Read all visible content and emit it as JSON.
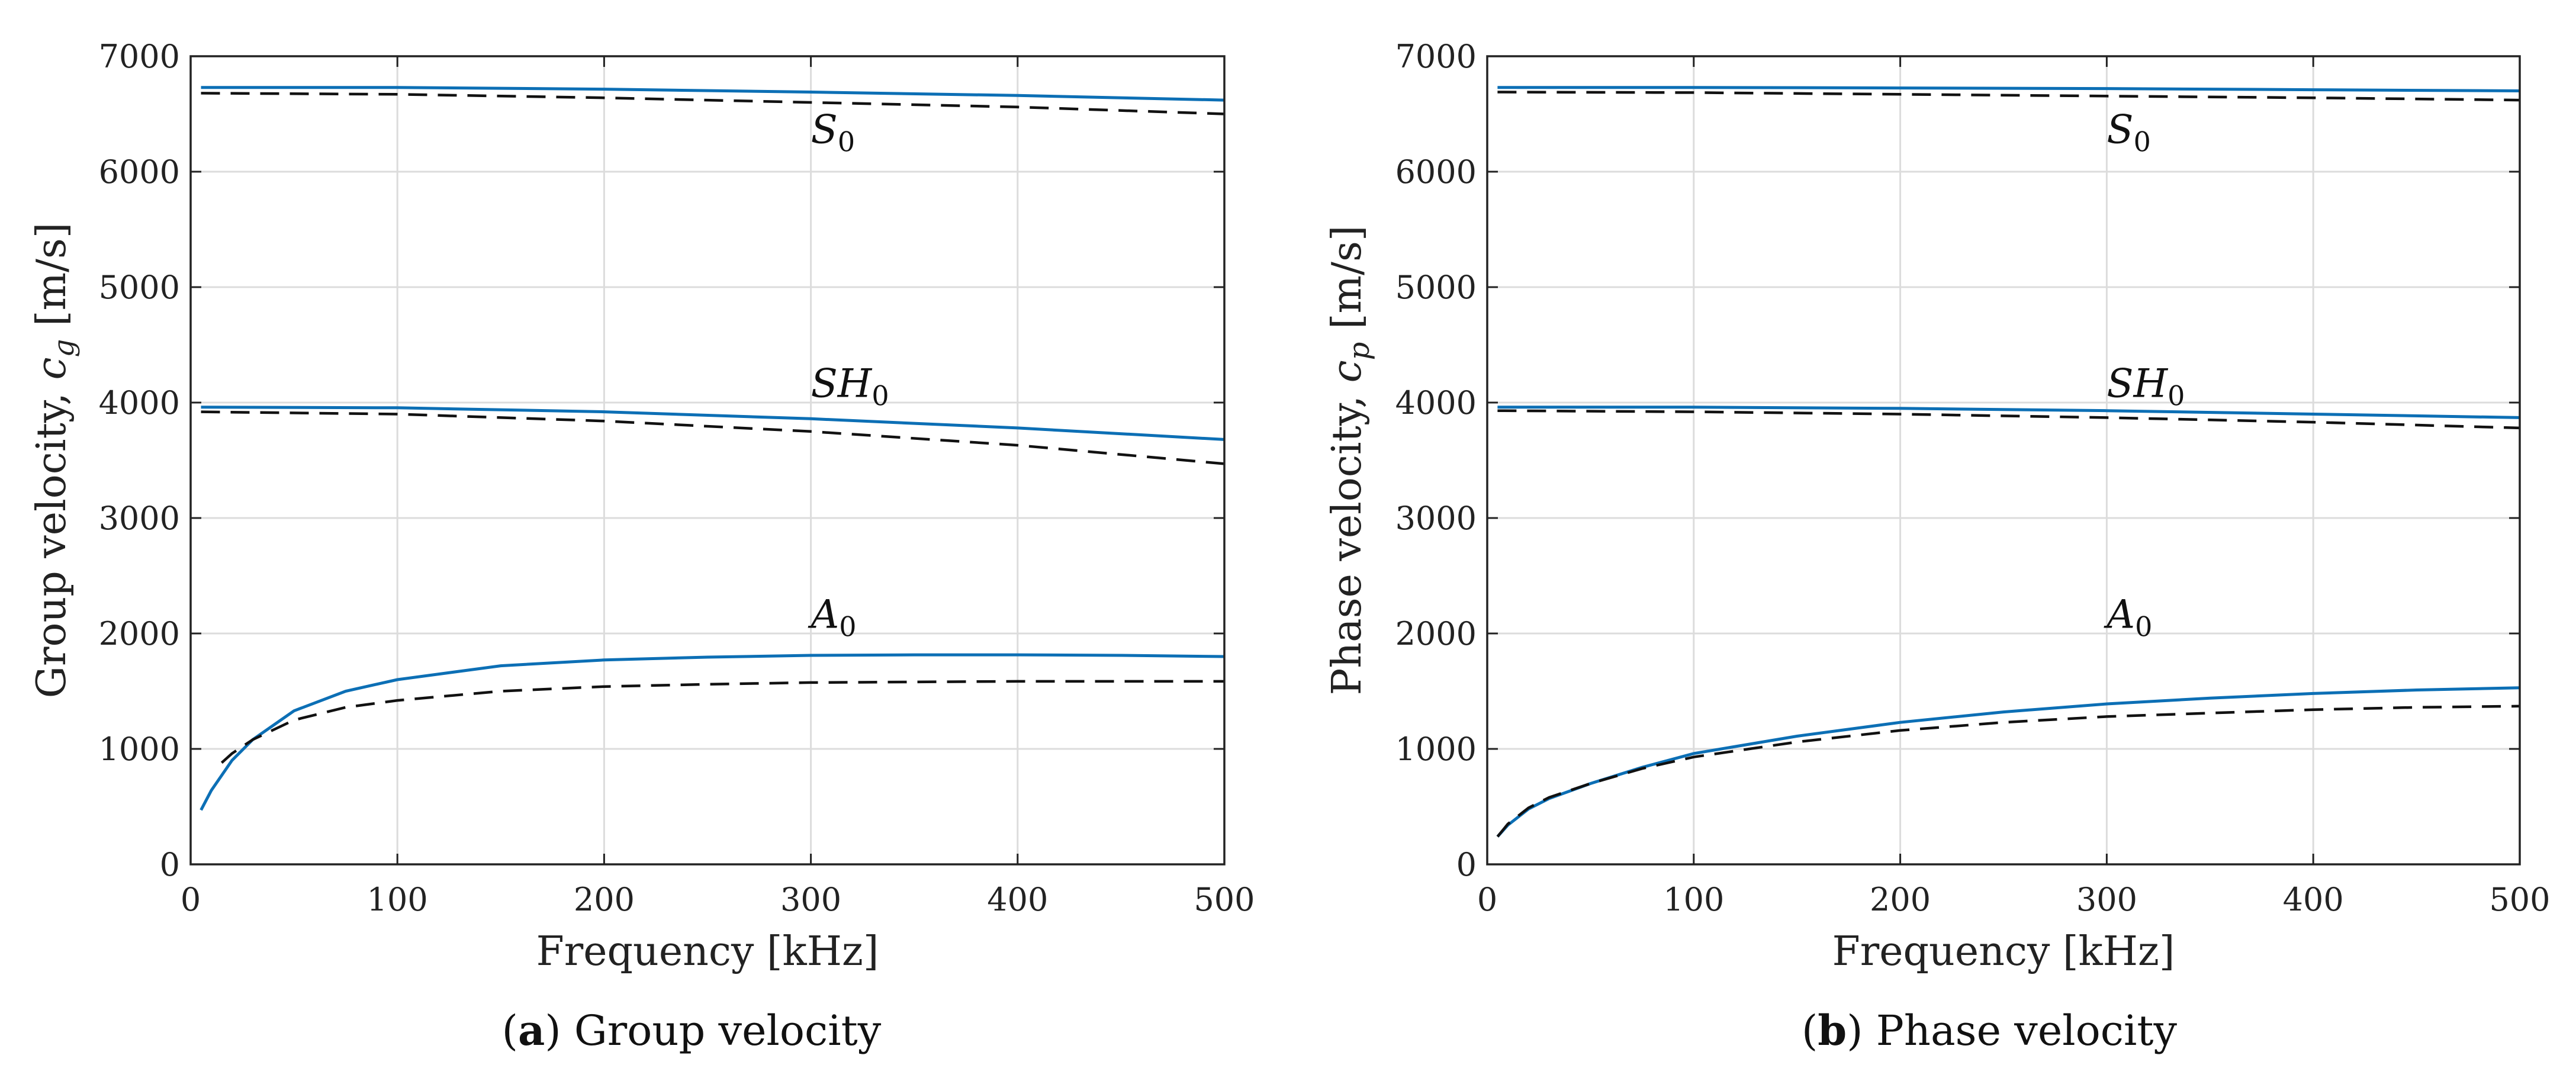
{
  "chart_data": [
    {
      "type": "line",
      "panel": "a",
      "caption_letter": "a",
      "caption_text": "Group velocity",
      "ylabel_text": "Group velocity, ",
      "ylabel_symbol": "c",
      "ylabel_subscript": "g",
      "ylabel_unit": " [m/s]",
      "xlabel": "Frequency [kHz]",
      "xlim": [
        0,
        500
      ],
      "ylim": [
        0,
        7000
      ],
      "xticks": [
        0,
        100,
        200,
        300,
        400,
        500
      ],
      "yticks": [
        0,
        1000,
        2000,
        3000,
        4000,
        5000,
        6000,
        7000
      ],
      "xtick_labels": [
        "0",
        "100",
        "200",
        "300",
        "400",
        "500"
      ],
      "ytick_labels": [
        "0",
        "1000",
        "2000",
        "3000",
        "4000",
        "5000",
        "6000",
        "7000"
      ],
      "grid": true,
      "annotations": [
        {
          "mode": "S",
          "sub": "0",
          "x": 300,
          "y": 6250
        },
        {
          "mode": "SH",
          "sub": "0",
          "x": 300,
          "y": 4050
        },
        {
          "mode": "A",
          "sub": "0",
          "x": 300,
          "y": 2050
        }
      ],
      "series": [
        {
          "name": "S0 (solid)",
          "style": "solid",
          "x": [
            5,
            100,
            200,
            300,
            400,
            500
          ],
          "y": [
            6730,
            6730,
            6715,
            6690,
            6660,
            6620
          ]
        },
        {
          "name": "S0 (dashed)",
          "style": "dashed",
          "x": [
            5,
            100,
            200,
            300,
            400,
            500
          ],
          "y": [
            6680,
            6670,
            6640,
            6600,
            6560,
            6500
          ]
        },
        {
          "name": "SH0 (solid)",
          "style": "solid",
          "x": [
            5,
            100,
            200,
            300,
            400,
            500
          ],
          "y": [
            3960,
            3955,
            3920,
            3860,
            3780,
            3680
          ]
        },
        {
          "name": "SH0 (dashed)",
          "style": "dashed",
          "x": [
            5,
            100,
            200,
            300,
            400,
            500
          ],
          "y": [
            3920,
            3900,
            3840,
            3750,
            3630,
            3470
          ]
        },
        {
          "name": "A0 (solid)",
          "style": "solid",
          "x": [
            5,
            10,
            20,
            30,
            50,
            75,
            100,
            150,
            200,
            250,
            300,
            350,
            400,
            450,
            500
          ],
          "y": [
            470,
            640,
            900,
            1080,
            1330,
            1500,
            1600,
            1720,
            1770,
            1795,
            1810,
            1815,
            1815,
            1810,
            1800
          ]
        },
        {
          "name": "A0 (dashed)",
          "style": "dashed",
          "x": [
            15,
            20,
            30,
            50,
            75,
            100,
            150,
            200,
            250,
            300,
            350,
            400,
            450,
            500
          ],
          "y": [
            880,
            960,
            1080,
            1250,
            1360,
            1420,
            1500,
            1540,
            1560,
            1575,
            1580,
            1585,
            1585,
            1585
          ]
        }
      ]
    },
    {
      "type": "line",
      "panel": "b",
      "caption_letter": "b",
      "caption_text": "Phase velocity",
      "ylabel_text": "Phase velocity, ",
      "ylabel_symbol": "c",
      "ylabel_subscript": "p",
      "ylabel_unit": " [m/s]",
      "xlabel": "Frequency [kHz]",
      "xlim": [
        0,
        500
      ],
      "ylim": [
        0,
        7000
      ],
      "xticks": [
        0,
        100,
        200,
        300,
        400,
        500
      ],
      "yticks": [
        0,
        1000,
        2000,
        3000,
        4000,
        5000,
        6000,
        7000
      ],
      "xtick_labels": [
        "0",
        "100",
        "200",
        "300",
        "400",
        "500"
      ],
      "ytick_labels": [
        "0",
        "1000",
        "2000",
        "3000",
        "4000",
        "5000",
        "6000",
        "7000"
      ],
      "grid": true,
      "annotations": [
        {
          "mode": "S",
          "sub": "0",
          "x": 300,
          "y": 6250
        },
        {
          "mode": "SH",
          "sub": "0",
          "x": 300,
          "y": 4050
        },
        {
          "mode": "A",
          "sub": "0",
          "x": 300,
          "y": 2050
        }
      ],
      "series": [
        {
          "name": "S0 (solid)",
          "style": "solid",
          "x": [
            5,
            100,
            200,
            300,
            400,
            500
          ],
          "y": [
            6730,
            6730,
            6725,
            6720,
            6710,
            6700
          ]
        },
        {
          "name": "S0 (dashed)",
          "style": "dashed",
          "x": [
            5,
            100,
            200,
            300,
            400,
            500
          ],
          "y": [
            6690,
            6685,
            6670,
            6655,
            6640,
            6620
          ]
        },
        {
          "name": "SH0 (solid)",
          "style": "solid",
          "x": [
            5,
            100,
            200,
            300,
            400,
            500
          ],
          "y": [
            3960,
            3960,
            3950,
            3930,
            3900,
            3870
          ]
        },
        {
          "name": "SH0 (dashed)",
          "style": "dashed",
          "x": [
            5,
            100,
            200,
            300,
            400,
            500
          ],
          "y": [
            3930,
            3920,
            3900,
            3870,
            3830,
            3780
          ]
        },
        {
          "name": "A0 (solid)",
          "style": "solid",
          "x": [
            5,
            10,
            20,
            30,
            50,
            75,
            100,
            150,
            200,
            250,
            300,
            350,
            400,
            450,
            500
          ],
          "y": [
            240,
            340,
            480,
            570,
            700,
            840,
            960,
            1110,
            1230,
            1320,
            1390,
            1440,
            1480,
            1510,
            1530
          ]
        },
        {
          "name": "A0 (dashed)",
          "style": "dashed",
          "x": [
            5,
            10,
            20,
            30,
            50,
            75,
            100,
            150,
            200,
            250,
            300,
            350,
            400,
            450,
            500
          ],
          "y": [
            240,
            350,
            490,
            580,
            700,
            830,
            930,
            1060,
            1160,
            1230,
            1280,
            1310,
            1340,
            1360,
            1370
          ]
        }
      ]
    }
  ]
}
